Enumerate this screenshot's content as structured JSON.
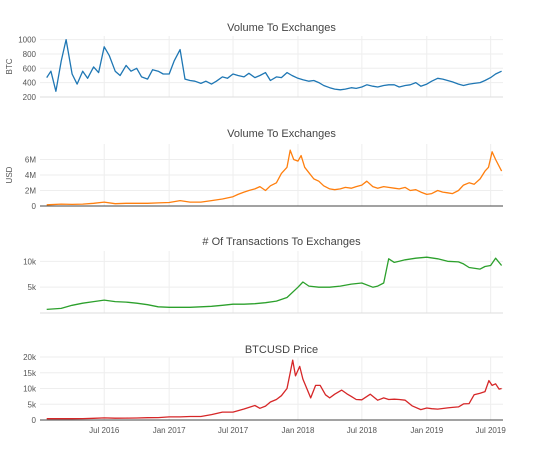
{
  "chart_data": [
    {
      "type": "line",
      "title": "Volume To Exchanges",
      "xlabel": "",
      "ylabel": "BTC",
      "color": "#1f77b4",
      "ylim": [
        200,
        1050
      ],
      "yticks": [
        200,
        400,
        600,
        800,
        1000
      ],
      "ytick_labels": [
        "200",
        "400",
        "600",
        "800",
        "1000"
      ],
      "grid": true,
      "x": [
        "2016-01-20",
        "2016-02-01",
        "2016-02-15",
        "2016-03-01",
        "2016-03-15",
        "2016-04-01",
        "2016-04-15",
        "2016-05-01",
        "2016-05-15",
        "2016-06-01",
        "2016-06-15",
        "2016-07-01",
        "2016-07-15",
        "2016-08-01",
        "2016-08-15",
        "2016-09-01",
        "2016-09-15",
        "2016-10-01",
        "2016-10-15",
        "2016-11-01",
        "2016-11-15",
        "2016-12-01",
        "2016-12-15",
        "2017-01-01",
        "2017-01-15",
        "2017-02-01",
        "2017-02-15",
        "2017-03-01",
        "2017-03-15",
        "2017-04-01",
        "2017-04-15",
        "2017-05-01",
        "2017-05-15",
        "2017-06-01",
        "2017-06-15",
        "2017-07-01",
        "2017-07-15",
        "2017-08-01",
        "2017-08-15",
        "2017-09-01",
        "2017-09-15",
        "2017-10-01",
        "2017-10-15",
        "2017-11-01",
        "2017-11-15",
        "2017-12-01",
        "2017-12-15",
        "2018-01-01",
        "2018-01-15",
        "2018-02-01",
        "2018-02-15",
        "2018-03-01",
        "2018-03-15",
        "2018-04-01",
        "2018-04-15",
        "2018-05-01",
        "2018-05-15",
        "2018-06-01",
        "2018-06-15",
        "2018-07-01",
        "2018-07-15",
        "2018-08-01",
        "2018-08-15",
        "2018-09-01",
        "2018-09-15",
        "2018-10-01",
        "2018-10-15",
        "2018-11-01",
        "2018-11-15",
        "2018-12-01",
        "2018-12-15",
        "2019-01-01",
        "2019-01-15",
        "2019-02-01",
        "2019-02-15",
        "2019-03-01",
        "2019-03-15",
        "2019-04-01",
        "2019-04-15",
        "2019-05-01",
        "2019-05-15",
        "2019-06-01",
        "2019-06-15",
        "2019-07-01",
        "2019-07-15",
        "2019-08-01"
      ],
      "values": [
        470,
        560,
        280,
        700,
        1000,
        520,
        380,
        560,
        460,
        620,
        540,
        900,
        780,
        560,
        500,
        640,
        560,
        600,
        480,
        450,
        580,
        560,
        520,
        520,
        700,
        860,
        450,
        430,
        420,
        390,
        420,
        380,
        420,
        480,
        460,
        520,
        500,
        480,
        530,
        470,
        500,
        540,
        430,
        480,
        470,
        540,
        500,
        460,
        440,
        420,
        430,
        400,
        360,
        330,
        310,
        300,
        310,
        330,
        320,
        340,
        370,
        350,
        340,
        360,
        370,
        370,
        340,
        360,
        370,
        400,
        350,
        380,
        420,
        460,
        450,
        430,
        410,
        380,
        360,
        380,
        390,
        400,
        430,
        470,
        520,
        560
      ]
    },
    {
      "type": "line",
      "title": "Volume To Exchanges",
      "xlabel": "",
      "ylabel": "USD",
      "color": "#ff7f0e",
      "ylim": [
        0,
        8000000
      ],
      "yticks": [
        0,
        2000000,
        4000000,
        6000000
      ],
      "ytick_labels": [
        "0",
        "2M",
        "4M",
        "6M"
      ],
      "grid": true,
      "x": [
        "2016-01-20",
        "2016-03-01",
        "2016-04-01",
        "2016-05-01",
        "2016-06-01",
        "2016-07-01",
        "2016-08-01",
        "2016-09-01",
        "2016-10-01",
        "2016-11-01",
        "2016-12-01",
        "2017-01-01",
        "2017-02-01",
        "2017-03-01",
        "2017-04-01",
        "2017-05-01",
        "2017-06-01",
        "2017-07-01",
        "2017-07-15",
        "2017-08-01",
        "2017-08-15",
        "2017-09-01",
        "2017-09-15",
        "2017-10-01",
        "2017-10-15",
        "2017-11-01",
        "2017-11-15",
        "2017-12-01",
        "2017-12-10",
        "2017-12-20",
        "2018-01-01",
        "2018-01-10",
        "2018-01-20",
        "2018-02-01",
        "2018-02-15",
        "2018-03-01",
        "2018-03-15",
        "2018-04-01",
        "2018-04-15",
        "2018-05-01",
        "2018-05-15",
        "2018-06-01",
        "2018-06-15",
        "2018-07-01",
        "2018-07-15",
        "2018-08-01",
        "2018-08-15",
        "2018-09-01",
        "2018-09-15",
        "2018-10-01",
        "2018-10-15",
        "2018-11-01",
        "2018-11-15",
        "2018-12-01",
        "2018-12-15",
        "2019-01-01",
        "2019-01-15",
        "2019-02-01",
        "2019-02-15",
        "2019-03-01",
        "2019-03-15",
        "2019-04-01",
        "2019-04-15",
        "2019-05-01",
        "2019-05-15",
        "2019-06-01",
        "2019-06-15",
        "2019-06-25",
        "2019-07-05",
        "2019-07-15",
        "2019-08-01"
      ],
      "values": [
        150000,
        250000,
        200000,
        250000,
        350000,
        500000,
        300000,
        350000,
        350000,
        350000,
        400000,
        450000,
        700000,
        500000,
        500000,
        700000,
        900000,
        1200000,
        1500000,
        1800000,
        2000000,
        2200000,
        2500000,
        2000000,
        2600000,
        3000000,
        4200000,
        5000000,
        7200000,
        6000000,
        5800000,
        6500000,
        5000000,
        4300000,
        3500000,
        3200000,
        2600000,
        2200000,
        2100000,
        2200000,
        2400000,
        2300000,
        2500000,
        2700000,
        3200000,
        2500000,
        2300000,
        2500000,
        2400000,
        2300000,
        2200000,
        2400000,
        2000000,
        2100000,
        1800000,
        1500000,
        1600000,
        2000000,
        1800000,
        1700000,
        1600000,
        2000000,
        2700000,
        3000000,
        2800000,
        3500000,
        4500000,
        5000000,
        7000000,
        6000000,
        4500000
      ]
    },
    {
      "type": "line",
      "title": "# Of Transactions To Exchanges",
      "xlabel": "",
      "ylabel": "",
      "color": "#2ca02c",
      "ylim": [
        0,
        12000
      ],
      "yticks": [
        5000,
        10000
      ],
      "ytick_labels": [
        "5k",
        "10k"
      ],
      "grid": true,
      "x": [
        "2016-01-20",
        "2016-03-01",
        "2016-04-01",
        "2016-05-01",
        "2016-06-01",
        "2016-07-01",
        "2016-08-01",
        "2016-09-01",
        "2016-10-01",
        "2016-11-01",
        "2016-12-01",
        "2017-01-01",
        "2017-02-01",
        "2017-03-01",
        "2017-04-01",
        "2017-05-01",
        "2017-06-01",
        "2017-07-01",
        "2017-08-01",
        "2017-09-01",
        "2017-10-01",
        "2017-11-01",
        "2017-12-01",
        "2018-01-01",
        "2018-01-15",
        "2018-02-01",
        "2018-03-01",
        "2018-04-01",
        "2018-05-01",
        "2018-06-01",
        "2018-07-01",
        "2018-08-01",
        "2018-08-15",
        "2018-09-01",
        "2018-09-15",
        "2018-10-01",
        "2018-10-15",
        "2018-11-01",
        "2018-12-01",
        "2019-01-01",
        "2019-02-01",
        "2019-03-01",
        "2019-04-01",
        "2019-04-15",
        "2019-05-01",
        "2019-06-01",
        "2019-06-15",
        "2019-07-01",
        "2019-07-15",
        "2019-08-01"
      ],
      "values": [
        700,
        900,
        1500,
        1900,
        2200,
        2500,
        2200,
        2100,
        1900,
        1600,
        1200,
        1100,
        1100,
        1100,
        1200,
        1300,
        1500,
        1700,
        1700,
        1800,
        2000,
        2300,
        3000,
        5000,
        6000,
        5200,
        5000,
        5000,
        5200,
        5600,
        5800,
        5000,
        5200,
        5800,
        10500,
        9800,
        10000,
        10300,
        10600,
        10800,
        10500,
        10000,
        9900,
        9500,
        8800,
        8500,
        9000,
        9200,
        10600,
        9200
      ]
    },
    {
      "type": "line",
      "title": "BTCUSD Price",
      "xlabel": "",
      "ylabel": "",
      "color": "#d62728",
      "ylim": [
        0,
        20000
      ],
      "yticks": [
        0,
        5000,
        10000,
        15000,
        20000
      ],
      "ytick_labels": [
        "0",
        "5k",
        "10k",
        "15k",
        "20k"
      ],
      "xlim": [
        "2016-01-01",
        "2019-08-05"
      ],
      "xticks": [
        "2016-07-01",
        "2017-01-01",
        "2017-07-01",
        "2018-01-01",
        "2018-07-01",
        "2019-01-01",
        "2019-07-01"
      ],
      "xtick_labels": [
        "Jul 2016",
        "Jan 2017",
        "Jul 2017",
        "Jan 2018",
        "Jul 2018",
        "Jan 2019",
        "Jul 2019"
      ],
      "grid": true,
      "x": [
        "2016-01-20",
        "2016-03-01",
        "2016-04-01",
        "2016-05-01",
        "2016-06-01",
        "2016-07-01",
        "2016-08-01",
        "2016-09-01",
        "2016-10-01",
        "2016-11-01",
        "2016-12-01",
        "2017-01-01",
        "2017-02-01",
        "2017-03-01",
        "2017-04-01",
        "2017-05-01",
        "2017-06-01",
        "2017-07-01",
        "2017-08-01",
        "2017-09-01",
        "2017-09-15",
        "2017-10-01",
        "2017-10-15",
        "2017-11-01",
        "2017-11-15",
        "2017-12-01",
        "2017-12-10",
        "2017-12-17",
        "2017-12-25",
        "2018-01-06",
        "2018-01-15",
        "2018-02-06",
        "2018-02-20",
        "2018-03-05",
        "2018-03-20",
        "2018-04-01",
        "2018-04-15",
        "2018-05-05",
        "2018-05-20",
        "2018-06-01",
        "2018-06-15",
        "2018-07-01",
        "2018-07-25",
        "2018-08-15",
        "2018-09-01",
        "2018-09-15",
        "2018-10-01",
        "2018-10-15",
        "2018-11-01",
        "2018-11-20",
        "2018-12-15",
        "2019-01-01",
        "2019-01-15",
        "2019-02-01",
        "2019-02-15",
        "2019-03-01",
        "2019-03-15",
        "2019-04-01",
        "2019-04-15",
        "2019-05-01",
        "2019-05-15",
        "2019-06-01",
        "2019-06-15",
        "2019-06-26",
        "2019-07-05",
        "2019-07-15",
        "2019-07-25",
        "2019-08-01"
      ],
      "values": [
        400,
        420,
        420,
        450,
        550,
        680,
        580,
        600,
        620,
        720,
        760,
        970,
        1000,
        1100,
        1100,
        1700,
        2500,
        2500,
        3500,
        4600,
        3700,
        4400,
        5700,
        6500,
        7700,
        10000,
        15000,
        19000,
        14000,
        17000,
        13000,
        7000,
        11000,
        11000,
        8000,
        7000,
        8200,
        9500,
        8300,
        7500,
        6500,
        6400,
        8200,
        6300,
        7000,
        6500,
        6600,
        6500,
        6300,
        4500,
        3300,
        3800,
        3600,
        3450,
        3650,
        3850,
        4000,
        4150,
        5100,
        5200,
        8000,
        8500,
        9000,
        12500,
        11000,
        11500,
        9800,
        10000
      ]
    }
  ]
}
